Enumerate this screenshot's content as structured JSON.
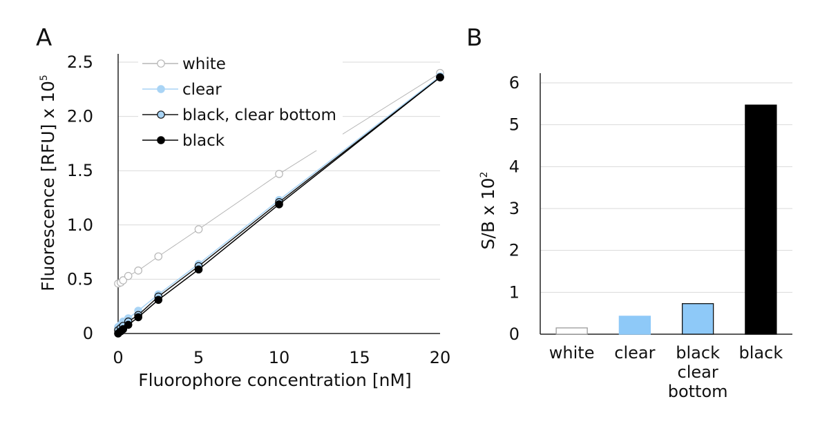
{
  "panels": {
    "a_label": "A",
    "b_label": "B"
  },
  "chart_data": [
    {
      "type": "line",
      "panel": "A",
      "xlabel": "Fluorophore concentration [nM]",
      "ylabel": "Fluorescence [RFU] x 10",
      "ylabel_sup": "5",
      "xlim": [
        0,
        20
      ],
      "ylim": [
        0,
        2.5
      ],
      "xticks": [
        0,
        5,
        10,
        15,
        20
      ],
      "xtick_labels": [
        "0",
        "5",
        "10",
        "15",
        "20"
      ],
      "yticks": [
        0,
        0.5,
        1.0,
        1.5,
        2.0,
        2.5
      ],
      "ytick_labels": [
        "0",
        "0.5",
        "1.0",
        "1.5",
        "2.0",
        "2.5"
      ],
      "grid": true,
      "legend_position": "top-left",
      "x": [
        0,
        0.16,
        0.31,
        0.63,
        1.25,
        2.5,
        5,
        10,
        20
      ],
      "series": [
        {
          "name": "white",
          "color": "#b5b5b5",
          "marker": "open-circle",
          "values": [
            0.46,
            0.47,
            0.49,
            0.53,
            0.58,
            0.71,
            0.96,
            1.47,
            2.4
          ]
        },
        {
          "name": "clear",
          "color": "#a9d4f5",
          "marker": "filled-circle",
          "values": [
            0.06,
            0.08,
            0.11,
            0.14,
            0.21,
            0.36,
            0.64,
            1.23,
            2.37
          ]
        },
        {
          "name": "black, clear bottom",
          "color": "#a9d4f5",
          "stroke": "#111111",
          "marker": "outlined-circle",
          "values": [
            0.03,
            0.05,
            0.07,
            0.11,
            0.17,
            0.34,
            0.62,
            1.21,
            2.36
          ]
        },
        {
          "name": "black",
          "color": "#000000",
          "marker": "filled-circle",
          "values": [
            0.0,
            0.02,
            0.04,
            0.08,
            0.15,
            0.31,
            0.59,
            1.19,
            2.36
          ]
        }
      ]
    },
    {
      "type": "bar",
      "panel": "B",
      "ylabel": "S/B x 10",
      "ylabel_sup": "2",
      "ylim": [
        0,
        6
      ],
      "yticks": [
        0,
        1,
        2,
        3,
        4,
        5,
        6
      ],
      "ytick_labels": [
        "0",
        "1",
        "2",
        "3",
        "4",
        "5",
        "6"
      ],
      "grid": true,
      "categories": [
        [
          "white"
        ],
        [
          "clear"
        ],
        [
          "black",
          "clear",
          "bottom"
        ],
        [
          "black"
        ]
      ],
      "values": [
        0.15,
        0.43,
        0.73,
        5.47
      ],
      "colors": [
        "#ffffff",
        "#8ec9f8",
        "#8ec9f8",
        "#000000"
      ],
      "edge_colors": [
        "#9a9a9a",
        "#8ec9f8",
        "#111111",
        "#000000"
      ]
    }
  ]
}
